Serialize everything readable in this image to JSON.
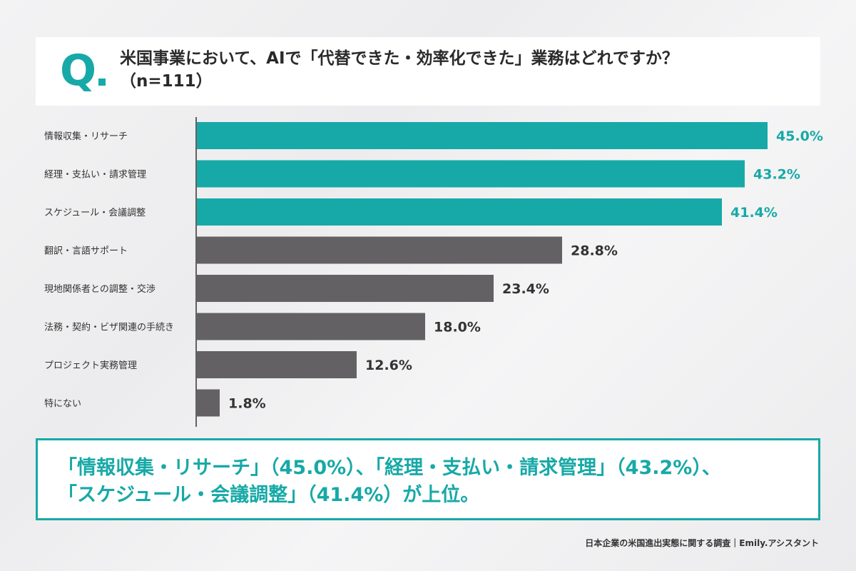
{
  "question": {
    "mark": "Q",
    "line1": "米国事業において、AIで「代替できた・効率化できた」業務はどれですか？",
    "line2": "（n=111）"
  },
  "chart_data": {
    "type": "bar",
    "orientation": "horizontal",
    "categories": [
      "情報収集・リサーチ",
      "経理・支払い・請求管理",
      "スケジュール・会議調整",
      "翻訳・言語サポート",
      "現地関係者との調整・交渉",
      "法務・契約・ビザ関連の手続き",
      "プロジェクト実務管理",
      "特にない"
    ],
    "values": [
      45.0,
      43.2,
      41.4,
      28.8,
      23.4,
      18.0,
      12.6,
      1.8
    ],
    "value_labels": [
      "45.0%",
      "43.2%",
      "41.4%",
      "28.8%",
      "23.4%",
      "18.0%",
      "12.6%",
      "1.8%"
    ],
    "unit": "%",
    "highlight_count": 3,
    "xlim": [
      0,
      45
    ],
    "grid": false,
    "colors": {
      "highlight": "#17a9a7",
      "other": "#646164",
      "label_other": "#333333"
    }
  },
  "summary": {
    "line1": "「情報収集・リサーチ」（45.0%）、「経理・支払い・請求管理」（43.2%）、",
    "line2": "「スケジュール・会議調整」（41.4%）が上位。"
  },
  "source": "日本企業の米国進出実態に関する調査｜Emily.アシスタント"
}
